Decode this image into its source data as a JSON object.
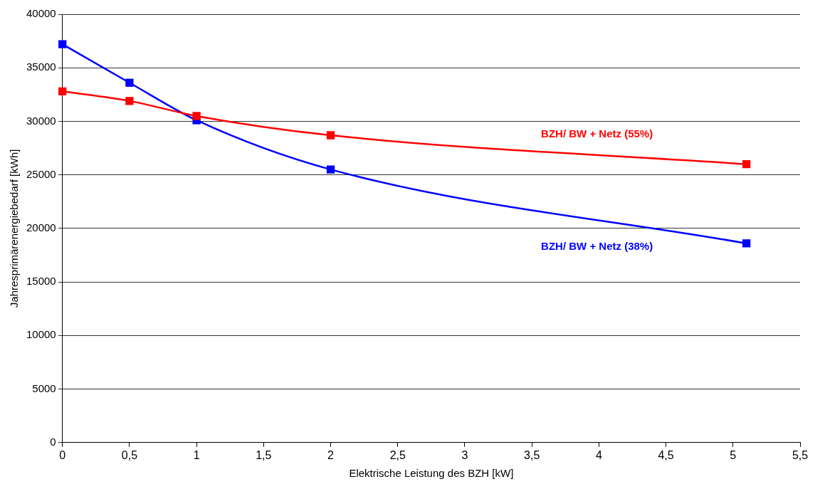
{
  "chart_data": {
    "type": "line",
    "xlabel": "Elektrische Leistung des BZH [kW]",
    "ylabel": "Jahresprimärenergiebedarf [kWh]",
    "xlim": [
      0,
      5.5
    ],
    "xticks": [
      0,
      {
        "value": 0.5,
        "label": "0,5"
      },
      1,
      {
        "value": 1.5,
        "label": "1,5"
      },
      2,
      {
        "value": 2.5,
        "label": "2,5"
      },
      3,
      {
        "value": 3.5,
        "label": "3,5"
      },
      4,
      {
        "value": 4.5,
        "label": "4,5"
      },
      5,
      {
        "value": 5.5,
        "label": "5,5"
      }
    ],
    "ylim": [
      0,
      40000
    ],
    "yticks": [
      0,
      5000,
      10000,
      15000,
      20000,
      25000,
      30000,
      35000,
      40000
    ],
    "grid": "y",
    "legend": false,
    "marker": "square",
    "line_style": "solid",
    "x": [
      0,
      0.5,
      1,
      2,
      5.1
    ],
    "series": [
      {
        "name": "BZH/ BW + Netz (55%)",
        "color": "#ff0000",
        "values": [
          32800,
          31900,
          30500,
          28700,
          26000
        ]
      },
      {
        "name": "BZH/ BW + Netz (38%)",
        "color": "#0000ff",
        "values": [
          37200,
          33600,
          30100,
          25500,
          18600
        ]
      }
    ]
  }
}
